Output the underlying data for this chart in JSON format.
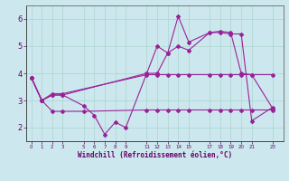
{
  "xlabel": "Windchill (Refroidissement éolien,°C)",
  "background_color": "#cce8ee",
  "grid_color": "#aad4cc",
  "line_color": "#992299",
  "ylim": [
    1.5,
    6.5
  ],
  "xlim": [
    -0.5,
    24.0
  ],
  "yticks": [
    2,
    3,
    4,
    5,
    6
  ],
  "xtick_positions": [
    0,
    1,
    2,
    3,
    5,
    6,
    7,
    8,
    9,
    11,
    12,
    13,
    14,
    15,
    17,
    18,
    19,
    20,
    21,
    23
  ],
  "xtick_labels": [
    "0",
    "1",
    "2",
    "3",
    "5",
    "6",
    "7",
    "8",
    "9",
    "11",
    "12",
    "13",
    "14",
    "15",
    "17",
    "18",
    "19",
    "20",
    "21",
    "23"
  ],
  "series": [
    {
      "x": [
        0,
        1,
        2,
        3,
        11,
        12,
        13,
        14,
        15,
        17,
        18,
        19,
        20,
        21,
        23
      ],
      "y": [
        3.85,
        3.0,
        3.2,
        3.2,
        4.0,
        4.0,
        4.75,
        6.1,
        5.15,
        5.5,
        5.55,
        5.5,
        4.0,
        3.95,
        2.7
      ]
    },
    {
      "x": [
        0,
        1,
        2,
        3,
        5,
        6,
        7,
        8,
        9,
        11,
        12,
        13,
        14,
        15,
        17,
        18,
        19,
        20,
        21,
        23
      ],
      "y": [
        3.85,
        3.0,
        3.2,
        3.2,
        2.8,
        2.45,
        1.75,
        2.2,
        2.0,
        4.0,
        5.0,
        4.75,
        5.0,
        4.85,
        5.5,
        5.5,
        5.45,
        5.45,
        2.25,
        2.75
      ]
    },
    {
      "x": [
        0,
        1,
        2,
        3,
        11,
        12,
        13,
        14,
        15,
        17,
        18,
        19,
        20,
        21,
        23
      ],
      "y": [
        3.85,
        3.0,
        3.25,
        3.25,
        3.95,
        3.95,
        3.95,
        3.95,
        3.95,
        3.95,
        3.95,
        3.95,
        3.95,
        3.95,
        3.95
      ]
    },
    {
      "x": [
        0,
        1,
        2,
        3,
        5,
        11,
        12,
        13,
        14,
        15,
        17,
        18,
        19,
        20,
        21,
        23
      ],
      "y": [
        3.85,
        3.0,
        2.6,
        2.6,
        2.6,
        2.65,
        2.65,
        2.65,
        2.65,
        2.65,
        2.65,
        2.65,
        2.65,
        2.65,
        2.65,
        2.65
      ]
    }
  ]
}
